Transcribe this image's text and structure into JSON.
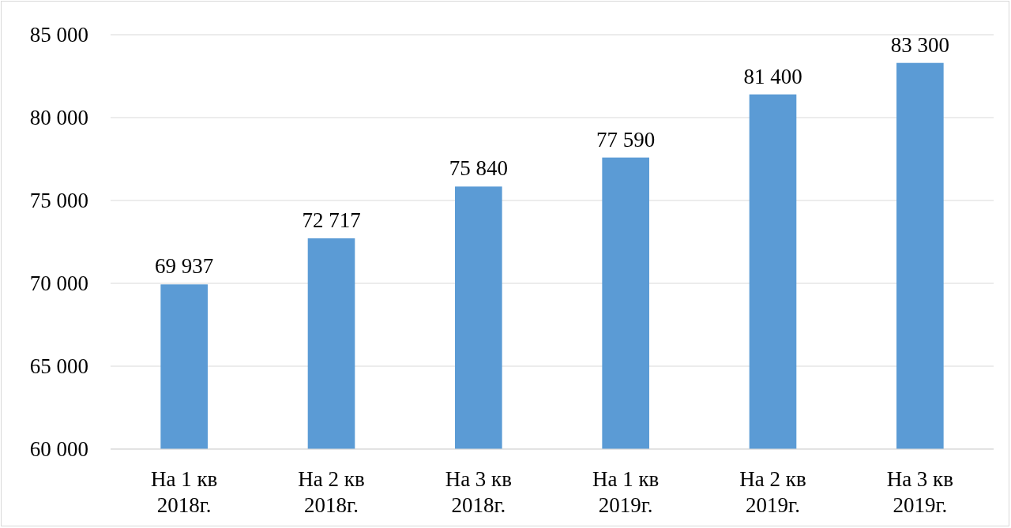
{
  "chart_data": {
    "type": "bar",
    "categories": [
      "На 1 кв 2018г.",
      "На 2 кв 2018г.",
      "На 3 кв 2018г.",
      "На 1 кв 2019г.",
      "На 2 кв 2019г.",
      "На 3 кв 2019г."
    ],
    "values": [
      69937,
      72717,
      75840,
      77590,
      81400,
      83300
    ],
    "value_labels": [
      "69 937",
      "72 717",
      "75 840",
      "77 590",
      "81 400",
      "83 300"
    ],
    "color": "#5b9bd5",
    "ylim": [
      60000,
      85000
    ],
    "yticks": [
      {
        "value": 60000,
        "label": "60 000"
      },
      {
        "value": 65000,
        "label": "65 000"
      },
      {
        "value": 70000,
        "label": "70 000"
      },
      {
        "value": 75000,
        "label": "75 000"
      },
      {
        "value": 80000,
        "label": "80 000"
      },
      {
        "value": 85000,
        "label": "85 000"
      }
    ],
    "grid": "y"
  }
}
